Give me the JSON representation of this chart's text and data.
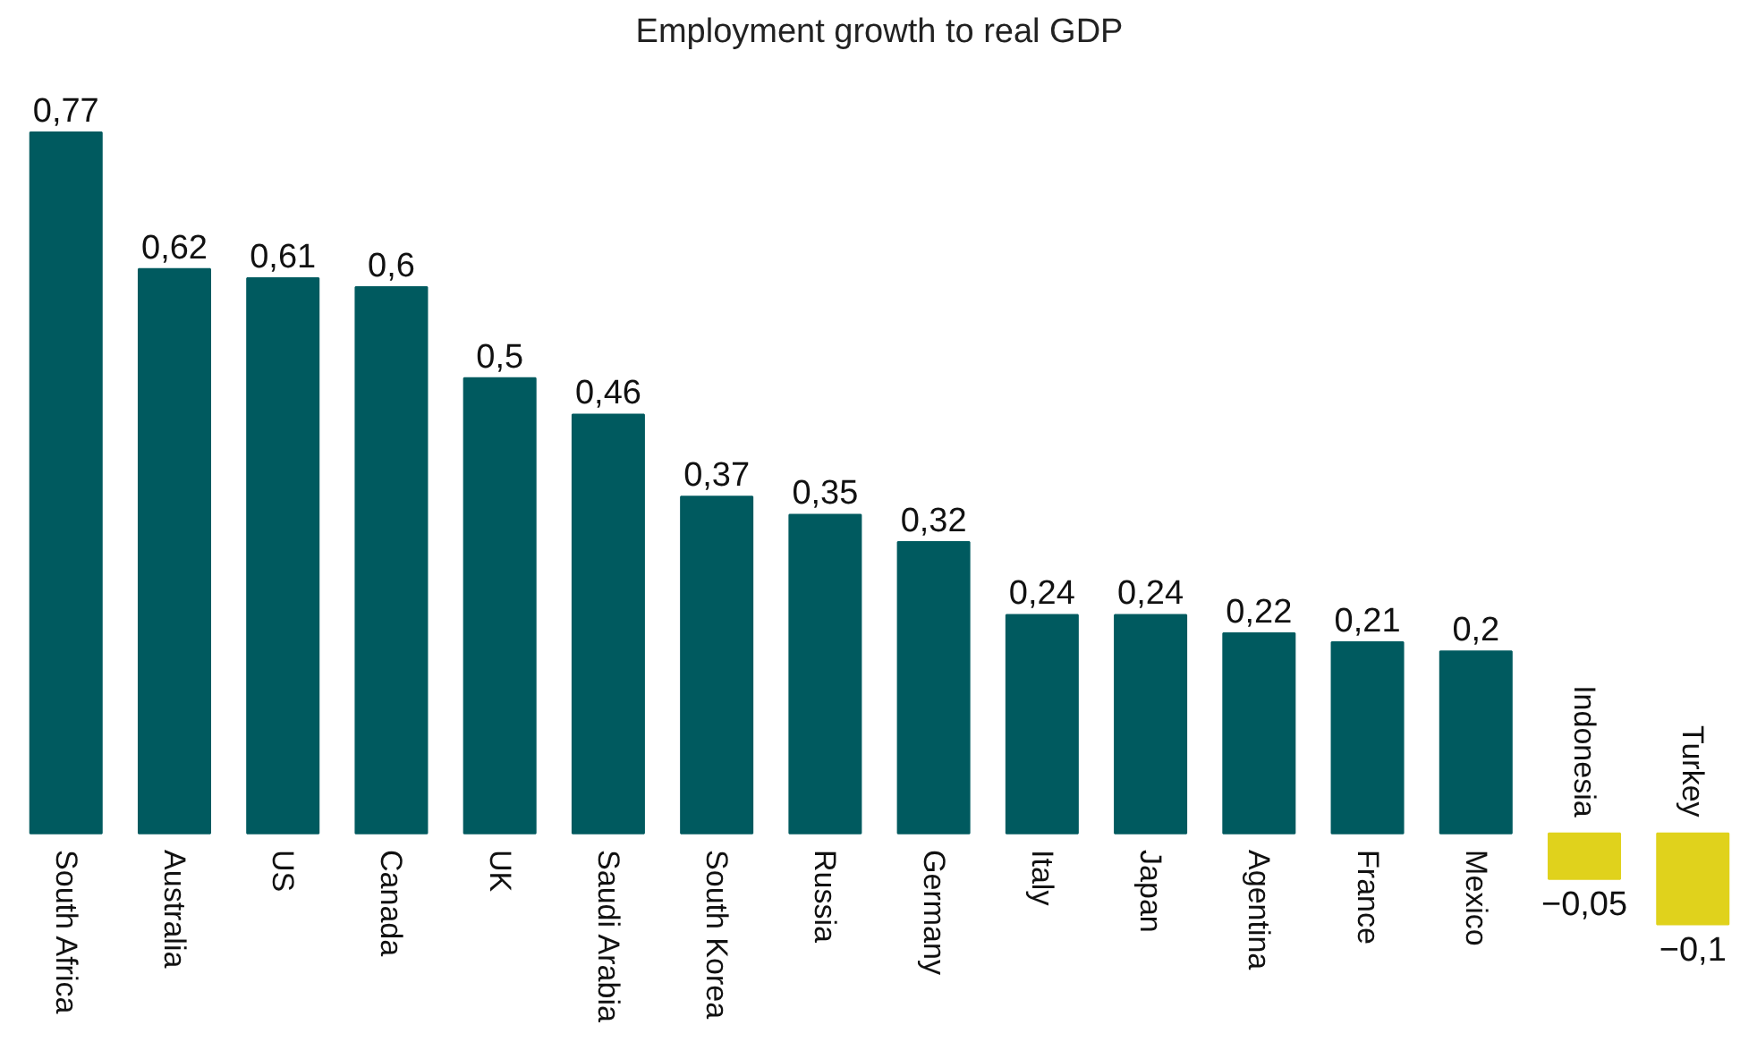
{
  "chart_data": {
    "type": "bar",
    "title": "Employment growth to real GDP",
    "categories": [
      "South Africa",
      "Australia",
      "US",
      "Canada",
      "UK",
      "Saudi Arabia",
      "South Korea",
      "Russia",
      "Germany",
      "Italy",
      "Japan",
      "Agentina",
      "France",
      "Mexico",
      "Indonesia",
      "Turkey"
    ],
    "values": [
      0.77,
      0.62,
      0.61,
      0.6,
      0.5,
      0.46,
      0.37,
      0.35,
      0.32,
      0.24,
      0.24,
      0.22,
      0.21,
      0.2,
      -0.05,
      -0.1
    ],
    "colors": [
      "#005a5f",
      "#005a5f",
      "#005a5f",
      "#005a5f",
      "#005a5f",
      "#005a5f",
      "#005a5f",
      "#005a5f",
      "#005a5f",
      "#005a5f",
      "#005a5f",
      "#005a5f",
      "#005a5f",
      "#005a5f",
      "#e0d21c",
      "#e0d21c"
    ],
    "value_labels": [
      "0,77",
      "0,62",
      "0,61",
      "0,6",
      "0,5",
      "0,46",
      "0,37",
      "0,35",
      "0,32",
      "0,24",
      "0,24",
      "0,22",
      "0,21",
      "0,2",
      "−0,05",
      "−0,1"
    ]
  }
}
